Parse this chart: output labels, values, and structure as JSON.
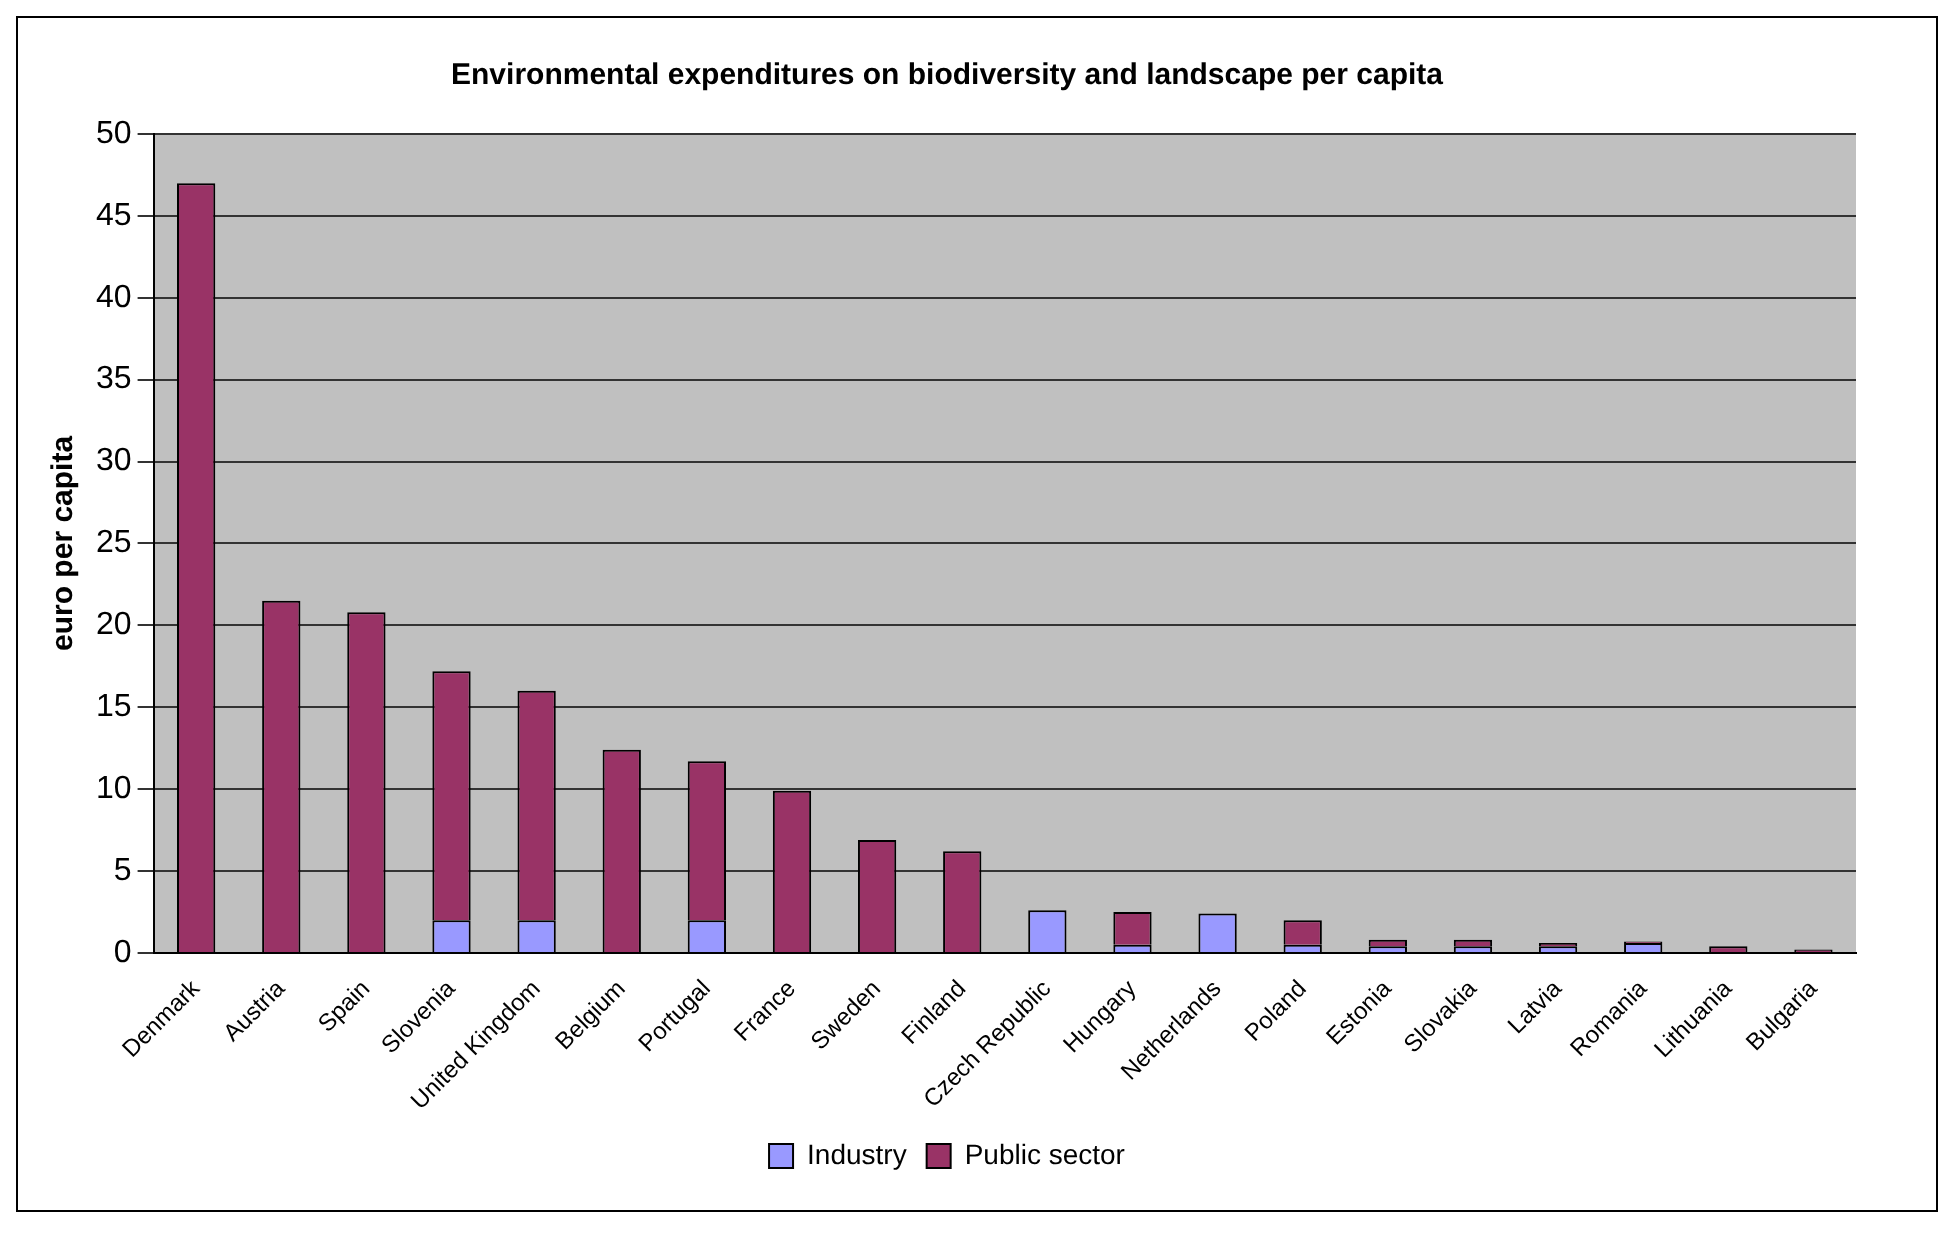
{
  "chart_data": {
    "type": "bar",
    "title": "Environmental expenditures on biodiversity and landscape per capita",
    "ylabel": "euro per capita",
    "categories": [
      "Denmark",
      "Austria",
      "Spain",
      "Slovenia",
      "United Kingdom",
      "Belgium",
      "Portugal",
      "France",
      "Sweden",
      "Finland",
      "Czech Republic",
      "Hungary",
      "Netherlands",
      "Poland",
      "Estonia",
      "Slovakia",
      "Latvia",
      "Romania",
      "Lithuania",
      "Bulgaria"
    ],
    "stacked": true,
    "series": [
      {
        "name": "Industry",
        "color": "#9999ff",
        "values": [
          0,
          0,
          0,
          2,
          2,
          0,
          2,
          0,
          0,
          0,
          2.6,
          0.5,
          2.4,
          0.5,
          0.4,
          0.4,
          0.4,
          0.6,
          0,
          0
        ]
      },
      {
        "name": "Public sector",
        "color": "#993366",
        "values": [
          47,
          21.5,
          20.8,
          15.2,
          14,
          12.4,
          9.7,
          9.9,
          6.9,
          6.2,
          0,
          2,
          0,
          1.5,
          0.4,
          0.4,
          0.2,
          0.1,
          0.4,
          0.2
        ]
      }
    ],
    "ylim": [
      0,
      50
    ],
    "yticks": [
      0,
      5,
      10,
      15,
      20,
      25,
      30,
      35,
      40,
      45,
      50
    ],
    "grid": "y",
    "legend": "bottom"
  }
}
